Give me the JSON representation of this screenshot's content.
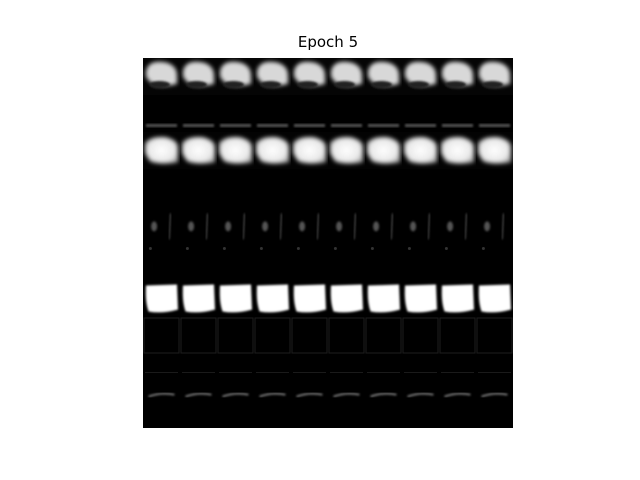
{
  "figure": {
    "title": "Epoch 5",
    "background_color": "#ffffff",
    "image_background_color": "#000000"
  },
  "grid": {
    "rows": 10,
    "cols": 10,
    "row_patterns": [
      "cap-blob",
      "faint-top-marks",
      "bright-top-blob",
      "dark",
      "faint-vertical-stroke",
      "faint-top-dots",
      "bright-full-blob",
      "dark-faint-border",
      "dark-faint-lines",
      "faint-stroke-bottom"
    ]
  }
}
